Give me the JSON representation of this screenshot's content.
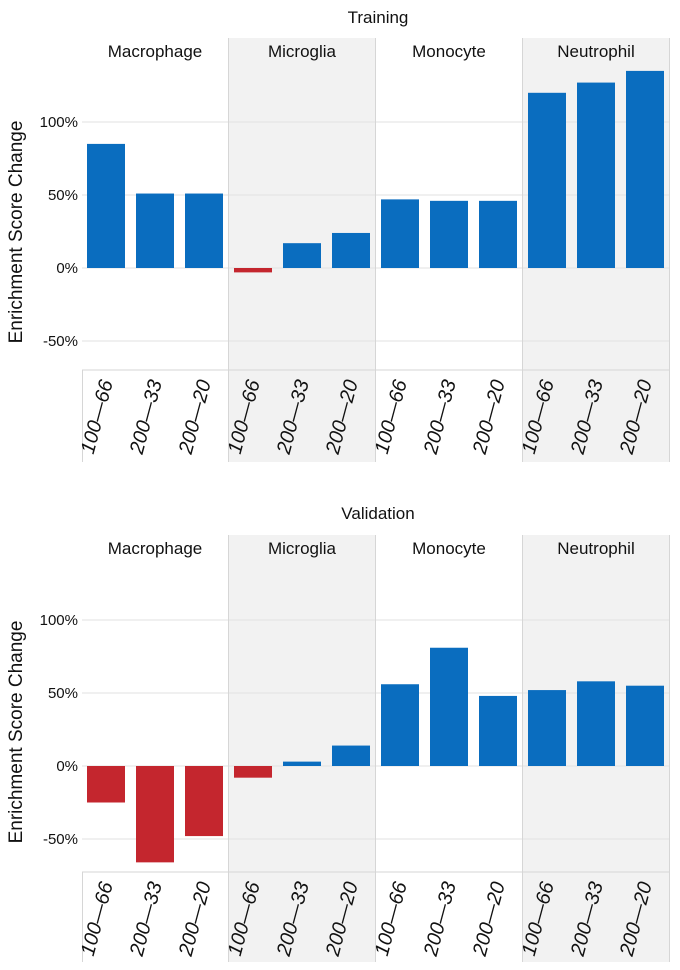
{
  "chart_data": [
    {
      "type": "bar",
      "title": "Training",
      "ylabel": "Enrichment Score Change",
      "ylim": [
        -70,
        150
      ],
      "yticks": [
        {
          "value": -50,
          "label": "-50%"
        },
        {
          "value": 0,
          "label": "0%"
        },
        {
          "value": 50,
          "label": "50%"
        },
        {
          "value": 100,
          "label": "100%"
        }
      ],
      "categories": [
        "100—66",
        "200—33",
        "200—20"
      ],
      "facets": [
        {
          "name": "Macrophage",
          "values": [
            85,
            51,
            51
          ]
        },
        {
          "name": "Microglia",
          "values": [
            -3,
            17,
            24
          ]
        },
        {
          "name": "Monocyte",
          "values": [
            47,
            46,
            46
          ]
        },
        {
          "name": "Neutrophil",
          "values": [
            120,
            127,
            135
          ]
        }
      ]
    },
    {
      "type": "bar",
      "title": "Validation",
      "ylabel": "Enrichment Score Change",
      "ylim": [
        -70,
        150
      ],
      "yticks": [
        {
          "value": -50,
          "label": "-50%"
        },
        {
          "value": 0,
          "label": "0%"
        },
        {
          "value": 50,
          "label": "50%"
        },
        {
          "value": 100,
          "label": "100%"
        }
      ],
      "categories": [
        "100—66",
        "200—33",
        "200—20"
      ],
      "facets": [
        {
          "name": "Macrophage",
          "values": [
            -25,
            -66,
            -48
          ]
        },
        {
          "name": "Microglia",
          "values": [
            -8,
            3,
            14
          ]
        },
        {
          "name": "Monocyte",
          "values": [
            56,
            81,
            48
          ]
        },
        {
          "name": "Neutrophil",
          "values": [
            52,
            58,
            55
          ]
        }
      ]
    }
  ],
  "colors": {
    "positive": "#0a6dbf",
    "negative": "#c4262e",
    "panel_shade": "#f2f2f2",
    "grid": "#e2e2e2",
    "divider": "#d6d6d6"
  }
}
